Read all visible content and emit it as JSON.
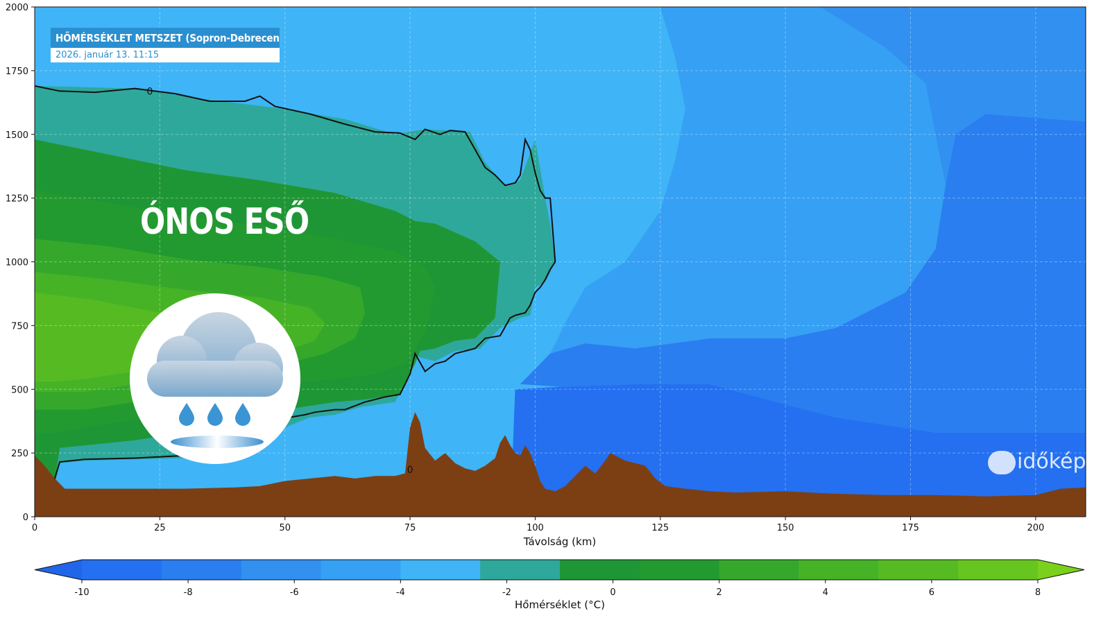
{
  "header": {
    "title": "HŐMÉRSÉKLET METSZET (Sopron-Debrecen)",
    "date": "2026. január 13. 11:15"
  },
  "annotation": {
    "label": "ÓNOS ESŐ"
  },
  "logo": {
    "text": "időkép"
  },
  "chart_data": {
    "type": "heatmap",
    "xlabel": "Távolság (km)",
    "ylabel": "",
    "xlim": [
      0,
      210
    ],
    "ylim": [
      0,
      2000
    ],
    "xticks": [
      "0",
      "25",
      "50",
      "75",
      "100",
      "125",
      "150",
      "175",
      "200"
    ],
    "yticks": [
      "0",
      "250",
      "500",
      "750",
      "1000",
      "1250",
      "1500",
      "1750",
      "2000"
    ],
    "grid": true,
    "contour_labels": [
      {
        "text": "0",
        "x": 23,
        "y": 1670
      },
      {
        "text": "0",
        "x": 75,
        "y": 185
      }
    ],
    "colorbar": {
      "label": "Hőmérséklet (°C)",
      "min": -11,
      "max": 9,
      "ticks": [
        "-10",
        "-8",
        "-6",
        "-4",
        "-2",
        "0",
        "2",
        "4",
        "6",
        "8"
      ],
      "colors": [
        "#2166e8",
        "#2470f0",
        "#2a7eef",
        "#3190f0",
        "#36a0f4",
        "#3fb4f7",
        "#2ea89b",
        "#1f9635",
        "#239a30",
        "#35a82c",
        "#46b327",
        "#56bb22",
        "#66c51f",
        "#7ad01a"
      ]
    },
    "regions": [
      {
        "name": "-8",
        "color": "#2470f0",
        "poly": [
          [
            95,
            0
          ],
          [
            210,
            0
          ],
          [
            210,
            330
          ],
          [
            198,
            330
          ],
          [
            180,
            330
          ],
          [
            170,
            360
          ],
          [
            160,
            390
          ],
          [
            150,
            440
          ],
          [
            135,
            520
          ],
          [
            120,
            520
          ],
          [
            105,
            510
          ],
          [
            96,
            500
          ]
        ]
      },
      {
        "name": "-7",
        "color": "#2a7eef",
        "poly": [
          [
            210,
            330
          ],
          [
            210,
            1550
          ],
          [
            190,
            1580
          ],
          [
            184,
            1500
          ],
          [
            182,
            1300
          ],
          [
            180,
            1050
          ],
          [
            174,
            880
          ],
          [
            160,
            740
          ],
          [
            150,
            700
          ],
          [
            135,
            700
          ],
          [
            120,
            660
          ],
          [
            110,
            680
          ],
          [
            103,
            640
          ],
          [
            97,
            520
          ],
          [
            105,
            510
          ],
          [
            120,
            520
          ],
          [
            135,
            520
          ],
          [
            150,
            440
          ],
          [
            160,
            390
          ],
          [
            170,
            360
          ],
          [
            180,
            330
          ],
          [
            198,
            330
          ]
        ]
      },
      {
        "name": "-5",
        "color": "#3190f0",
        "poly": [
          [
            190,
            1580
          ],
          [
            210,
            1550
          ],
          [
            210,
            2000
          ],
          [
            157,
            2000
          ],
          [
            170,
            1840
          ],
          [
            178,
            1700
          ],
          [
            182,
            1300
          ],
          [
            184,
            1500
          ]
        ]
      },
      {
        "name": "-4",
        "color": "#36a0f4",
        "poly": [
          [
            103,
            640
          ],
          [
            110,
            680
          ],
          [
            120,
            660
          ],
          [
            135,
            700
          ],
          [
            150,
            700
          ],
          [
            160,
            740
          ],
          [
            174,
            880
          ],
          [
            180,
            1050
          ],
          [
            182,
            1300
          ],
          [
            178,
            1700
          ],
          [
            170,
            1840
          ],
          [
            157,
            2000
          ],
          [
            125,
            2000
          ],
          [
            128,
            1800
          ],
          [
            130,
            1600
          ],
          [
            128,
            1400
          ],
          [
            125,
            1200
          ],
          [
            118,
            1000
          ],
          [
            110,
            900
          ],
          [
            106,
            760
          ]
        ]
      },
      {
        "name": "-3",
        "color": "#3fb4f7",
        "poly": [
          [
            0,
            0
          ],
          [
            210,
            0
          ],
          [
            210,
            0
          ],
          [
            95,
            0
          ],
          [
            96,
            500
          ],
          [
            97,
            520
          ],
          [
            103,
            640
          ],
          [
            106,
            760
          ],
          [
            110,
            900
          ],
          [
            118,
            1000
          ],
          [
            125,
            1200
          ],
          [
            128,
            1400
          ],
          [
            130,
            1600
          ],
          [
            128,
            1800
          ],
          [
            125,
            2000
          ],
          [
            0,
            2000
          ]
        ]
      },
      {
        "name": "0",
        "color": "#2ea89b",
        "poly": [
          [
            0,
            1690
          ],
          [
            20,
            1680
          ],
          [
            35,
            1635
          ],
          [
            48,
            1605
          ],
          [
            62,
            1560
          ],
          [
            72,
            1500
          ],
          [
            78,
            1520
          ],
          [
            87,
            1510
          ],
          [
            90,
            1390
          ],
          [
            94,
            1300
          ],
          [
            97,
            1320
          ],
          [
            100,
            1480
          ],
          [
            102,
            1250
          ],
          [
            103,
            1150
          ],
          [
            104,
            1000
          ],
          [
            102,
            920
          ],
          [
            100,
            900
          ],
          [
            99,
            790
          ],
          [
            97,
            780
          ],
          [
            93,
            740
          ],
          [
            89,
            660
          ],
          [
            84,
            650
          ],
          [
            80,
            610
          ],
          [
            76,
            630
          ],
          [
            75,
            560
          ],
          [
            72,
            450
          ],
          [
            65,
            430
          ],
          [
            60,
            400
          ],
          [
            55,
            390
          ],
          [
            50,
            350
          ],
          [
            43,
            250
          ],
          [
            30,
            230
          ],
          [
            20,
            225
          ],
          [
            10,
            220
          ],
          [
            5,
            210
          ],
          [
            4,
            120
          ],
          [
            0,
            230
          ]
        ]
      },
      {
        "name": "1",
        "color": "#1f9635",
        "poly": [
          [
            0,
            1480
          ],
          [
            15,
            1420
          ],
          [
            30,
            1360
          ],
          [
            45,
            1320
          ],
          [
            60,
            1270
          ],
          [
            72,
            1200
          ],
          [
            76,
            1160
          ],
          [
            80,
            1150
          ],
          [
            88,
            1080
          ],
          [
            93,
            1000
          ],
          [
            92,
            780
          ],
          [
            88,
            700
          ],
          [
            84,
            690
          ],
          [
            80,
            660
          ],
          [
            77,
            650
          ],
          [
            76,
            600
          ],
          [
            73,
            480
          ],
          [
            66,
            460
          ],
          [
            60,
            450
          ],
          [
            50,
            420
          ],
          [
            40,
            380
          ],
          [
            30,
            330
          ],
          [
            20,
            300
          ],
          [
            10,
            280
          ],
          [
            5,
            270
          ],
          [
            4,
            140
          ],
          [
            0,
            200
          ]
        ]
      },
      {
        "name": "2",
        "color": "#239a30",
        "poly": [
          [
            0,
            1280
          ],
          [
            15,
            1230
          ],
          [
            30,
            1180
          ],
          [
            45,
            1140
          ],
          [
            60,
            1090
          ],
          [
            72,
            1040
          ],
          [
            78,
            980
          ],
          [
            80,
            900
          ],
          [
            78,
            720
          ],
          [
            74,
            600
          ],
          [
            68,
            560
          ],
          [
            60,
            540
          ],
          [
            50,
            520
          ],
          [
            40,
            480
          ],
          [
            30,
            430
          ],
          [
            20,
            380
          ],
          [
            10,
            350
          ],
          [
            4,
            330
          ],
          [
            0,
            330
          ]
        ]
      },
      {
        "name": "3",
        "color": "#35a82c",
        "poly": [
          [
            0,
            1090
          ],
          [
            15,
            1060
          ],
          [
            30,
            1010
          ],
          [
            45,
            980
          ],
          [
            58,
            940
          ],
          [
            65,
            900
          ],
          [
            66,
            800
          ],
          [
            64,
            700
          ],
          [
            58,
            640
          ],
          [
            50,
            600
          ],
          [
            40,
            560
          ],
          [
            30,
            500
          ],
          [
            20,
            450
          ],
          [
            10,
            420
          ],
          [
            4,
            420
          ],
          [
            0,
            420
          ]
        ]
      },
      {
        "name": "4",
        "color": "#46b327",
        "poly": [
          [
            0,
            960
          ],
          [
            15,
            930
          ],
          [
            30,
            890
          ],
          [
            45,
            860
          ],
          [
            55,
            820
          ],
          [
            58,
            760
          ],
          [
            56,
            690
          ],
          [
            50,
            650
          ],
          [
            40,
            610
          ],
          [
            30,
            560
          ],
          [
            20,
            520
          ],
          [
            10,
            490
          ],
          [
            4,
            490
          ],
          [
            0,
            490
          ]
        ]
      },
      {
        "name": "5",
        "color": "#56bb22",
        "poly": [
          [
            0,
            880
          ],
          [
            12,
            850
          ],
          [
            25,
            800
          ],
          [
            35,
            760
          ],
          [
            40,
            700
          ],
          [
            38,
            640
          ],
          [
            30,
            600
          ],
          [
            20,
            570
          ],
          [
            10,
            540
          ],
          [
            4,
            530
          ],
          [
            0,
            530
          ]
        ]
      }
    ],
    "zero_isotherm": [
      [
        0,
        1690
      ],
      [
        5,
        1670
      ],
      [
        12,
        1665
      ],
      [
        20,
        1680
      ],
      [
        28,
        1660
      ],
      [
        35,
        1630
      ],
      [
        42,
        1630
      ],
      [
        45,
        1650
      ],
      [
        48,
        1610
      ],
      [
        55,
        1580
      ],
      [
        62,
        1540
      ],
      [
        68,
        1510
      ],
      [
        73,
        1505
      ],
      [
        76,
        1480
      ],
      [
        78,
        1520
      ],
      [
        81,
        1500
      ],
      [
        83,
        1515
      ],
      [
        86,
        1510
      ],
      [
        88,
        1440
      ],
      [
        90,
        1370
      ],
      [
        92,
        1340
      ],
      [
        94,
        1300
      ],
      [
        96,
        1310
      ],
      [
        97,
        1340
      ],
      [
        98,
        1480
      ],
      [
        99,
        1440
      ],
      [
        100,
        1350
      ],
      [
        101,
        1280
      ],
      [
        102,
        1250
      ],
      [
        103,
        1250
      ],
      [
        104,
        1000
      ],
      [
        103,
        970
      ],
      [
        102,
        930
      ],
      [
        101,
        900
      ],
      [
        100,
        880
      ],
      [
        99,
        830
      ],
      [
        98,
        800
      ],
      [
        96,
        790
      ],
      [
        95,
        780
      ],
      [
        93,
        710
      ],
      [
        90,
        700
      ],
      [
        88,
        660
      ],
      [
        86,
        650
      ],
      [
        84,
        640
      ],
      [
        82,
        610
      ],
      [
        80,
        600
      ],
      [
        78,
        570
      ],
      [
        76,
        640
      ],
      [
        75,
        560
      ],
      [
        73,
        480
      ],
      [
        70,
        470
      ],
      [
        66,
        450
      ],
      [
        62,
        420
      ],
      [
        60,
        420
      ],
      [
        56,
        410
      ],
      [
        54,
        400
      ],
      [
        51,
        390
      ],
      [
        50,
        370
      ],
      [
        48,
        340
      ],
      [
        46,
        300
      ],
      [
        44,
        270
      ],
      [
        43,
        240
      ],
      [
        40,
        260
      ],
      [
        35,
        260
      ],
      [
        30,
        240
      ],
      [
        20,
        230
      ],
      [
        10,
        225
      ],
      [
        5,
        215
      ],
      [
        4,
        150
      ],
      [
        4,
        115
      ]
    ],
    "terrain": [
      [
        0,
        240
      ],
      [
        2,
        200
      ],
      [
        4,
        150
      ],
      [
        6,
        110
      ],
      [
        10,
        110
      ],
      [
        20,
        110
      ],
      [
        30,
        110
      ],
      [
        40,
        115
      ],
      [
        45,
        120
      ],
      [
        50,
        140
      ],
      [
        55,
        150
      ],
      [
        60,
        160
      ],
      [
        64,
        150
      ],
      [
        68,
        160
      ],
      [
        72,
        160
      ],
      [
        74,
        170
      ],
      [
        75,
        350
      ],
      [
        76,
        410
      ],
      [
        77,
        370
      ],
      [
        78,
        270
      ],
      [
        80,
        220
      ],
      [
        82,
        250
      ],
      [
        84,
        210
      ],
      [
        86,
        190
      ],
      [
        88,
        180
      ],
      [
        90,
        200
      ],
      [
        92,
        230
      ],
      [
        93,
        290
      ],
      [
        94,
        320
      ],
      [
        95,
        280
      ],
      [
        96,
        250
      ],
      [
        97,
        240
      ],
      [
        98,
        280
      ],
      [
        99,
        250
      ],
      [
        100,
        200
      ],
      [
        101,
        140
      ],
      [
        102,
        110
      ],
      [
        103,
        105
      ],
      [
        104,
        100
      ],
      [
        106,
        120
      ],
      [
        108,
        160
      ],
      [
        110,
        200
      ],
      [
        112,
        170
      ],
      [
        114,
        220
      ],
      [
        115,
        250
      ],
      [
        116,
        240
      ],
      [
        118,
        220
      ],
      [
        120,
        210
      ],
      [
        122,
        200
      ],
      [
        124,
        150
      ],
      [
        126,
        120
      ],
      [
        130,
        110
      ],
      [
        135,
        100
      ],
      [
        140,
        95
      ],
      [
        150,
        100
      ],
      [
        160,
        90
      ],
      [
        170,
        85
      ],
      [
        180,
        85
      ],
      [
        190,
        80
      ],
      [
        200,
        85
      ],
      [
        205,
        110
      ],
      [
        210,
        115
      ]
    ]
  }
}
